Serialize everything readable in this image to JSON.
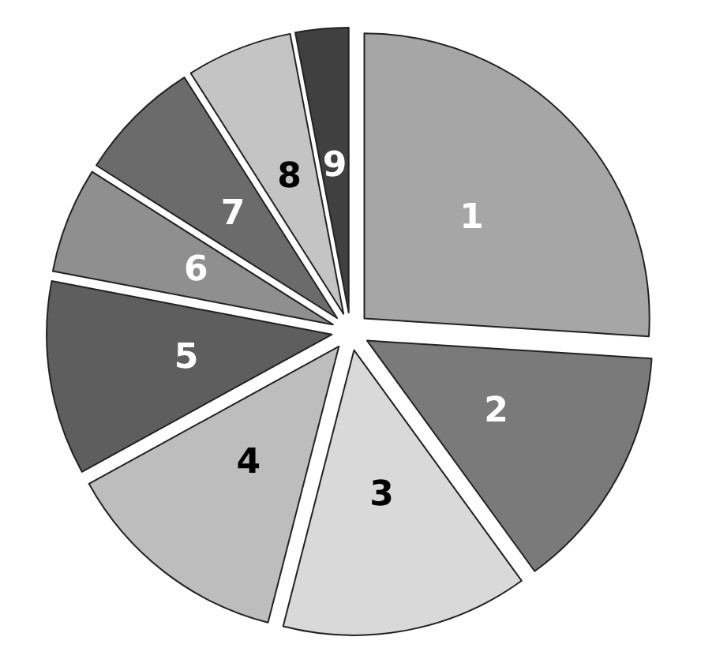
{
  "chart_data": {
    "type": "pie",
    "categories": [
      "1",
      "2",
      "3",
      "4",
      "5",
      "6",
      "7",
      "8",
      "9"
    ],
    "values": [
      26,
      14,
      14,
      13,
      11,
      6,
      7,
      6,
      3
    ],
    "colors": [
      "#a6a6a6",
      "#7a7a7a",
      "#d9d9d9",
      "#bdbdbd",
      "#5e5e5e",
      "#8f8f8f",
      "#6b6b6b",
      "#c4c4c4",
      "#404040"
    ],
    "legend": false
  }
}
